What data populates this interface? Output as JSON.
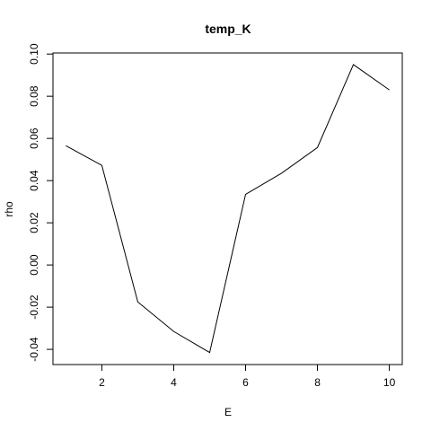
{
  "chart_data": {
    "type": "line",
    "title": "temp_K",
    "xlabel": "E",
    "ylabel": "rho",
    "x": [
      1,
      2,
      3,
      4,
      5,
      6,
      7,
      8,
      9,
      10
    ],
    "series": [
      {
        "values": [
          0.0565,
          0.0472,
          -0.0175,
          -0.0315,
          -0.0415,
          0.0335,
          0.0435,
          0.0557,
          0.095,
          0.083
        ]
      }
    ],
    "xlim": [
      0.64,
      10.36
    ],
    "ylim": [
      -0.0472,
      0.1005
    ],
    "xticks": [
      2,
      4,
      6,
      8,
      10
    ],
    "xtick_labels": [
      "2",
      "4",
      "6",
      "8",
      "10"
    ],
    "yticks": [
      -0.04,
      -0.02,
      0.0,
      0.02,
      0.04,
      0.06,
      0.08,
      0.1
    ],
    "ytick_labels": [
      "-0.04",
      "-0.02",
      "0.00",
      "0.02",
      "0.04",
      "0.06",
      "0.08",
      "0.10"
    ],
    "grid": false,
    "legend": "none",
    "colors": {
      "line": "#000000",
      "background": "#ffffff"
    }
  }
}
